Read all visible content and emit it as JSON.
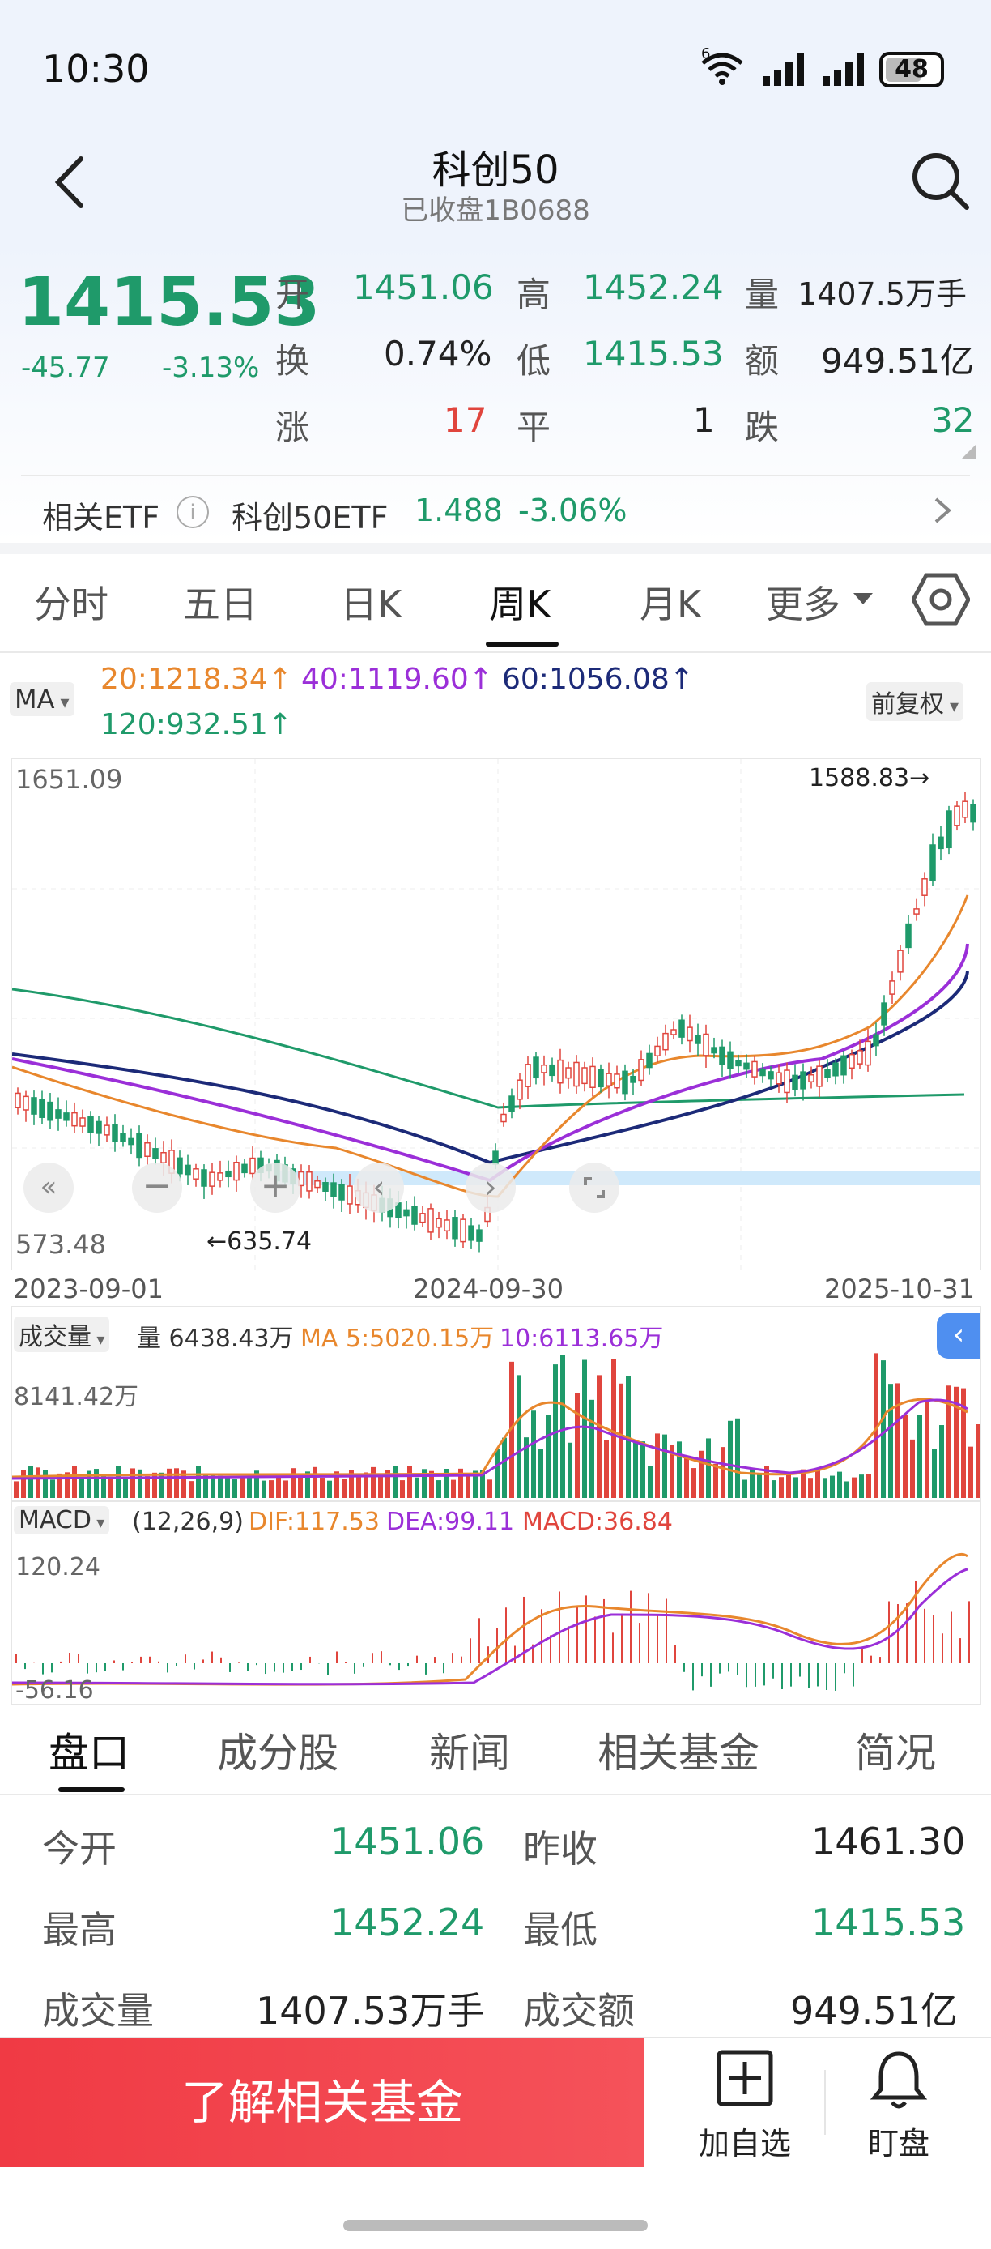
{
  "status_bar": {
    "time": "10:30",
    "network": "6",
    "battery": "48"
  },
  "header": {
    "title": "科创50",
    "subtitle": "已收盘1B0688"
  },
  "quote": {
    "price": "1415.53",
    "change": "-45.77",
    "change_pct": "-3.13%",
    "rows": [
      [
        {
          "label": "开",
          "value": "1451.06"
        },
        {
          "label": "高",
          "value": "1452.24"
        },
        {
          "label": "量",
          "value": "1407.5万手"
        }
      ],
      [
        {
          "label": "换",
          "value": "0.74%"
        },
        {
          "label": "低",
          "value": "1415.53"
        },
        {
          "label": "额",
          "value": "949.51亿"
        }
      ],
      [
        {
          "label": "涨",
          "value": "17"
        },
        {
          "label": "平",
          "value": "1"
        },
        {
          "label": "跌",
          "value": "32"
        }
      ]
    ]
  },
  "etf": {
    "label": "相关ETF",
    "name": "科创50ETF",
    "price": "1.488",
    "change_pct": "-3.06%"
  },
  "period_tabs": [
    "分时",
    "五日",
    "日K",
    "周K",
    "月K",
    "更多"
  ],
  "period_active": 3,
  "ma_bar": {
    "selector": "MA",
    "ma20": "20:1218.34",
    "ma40": "40:1119.60",
    "ma60": "60:1056.08",
    "ma120": "120:932.51",
    "adjust": "前复权"
  },
  "price_chart": {
    "y_max_label": "1651.09",
    "y_min_label": "573.48",
    "high_marker": "1588.83",
    "low_marker": "635.74",
    "dates": [
      "2023-09-01",
      "2024-09-30",
      "2025-10-31"
    ]
  },
  "volume_bar": {
    "selector": "成交量",
    "vol": "量 6438.43万",
    "ma5": "MA 5:5020.15万",
    "ma10": "10:6113.65万",
    "y_max": "8141.42万"
  },
  "macd_bar": {
    "selector": "MACD",
    "params": "(12,26,9)",
    "dif": "DIF:117.53",
    "dea": "DEA:99.11",
    "macd": "MACD:36.84",
    "y_max": "120.24",
    "y_min": "-56.16"
  },
  "info_tabs": [
    "盘口",
    "成分股",
    "新闻",
    "相关基金",
    "简况"
  ],
  "info_active": 0,
  "panel": {
    "rows": [
      {
        "l1": "今开",
        "v1": "1451.06",
        "l2": "昨收",
        "v2": "1461.30"
      },
      {
        "l1": "最高",
        "v1": "1452.24",
        "l2": "最低",
        "v2": "1415.53"
      },
      {
        "l1": "成交量",
        "v1": "1407.53万手",
        "l2": "成交额",
        "v2": "949.51亿"
      }
    ]
  },
  "bottom": {
    "cta": "了解相关基金",
    "add": "加自选",
    "watch": "盯盘"
  },
  "colors": {
    "up": "#e0453d",
    "down": "#1f9a6a",
    "ma20": "#e8872d",
    "ma40": "#9b2fd8",
    "ma60": "#1c2a78",
    "ma120": "#1f9a6a"
  }
}
